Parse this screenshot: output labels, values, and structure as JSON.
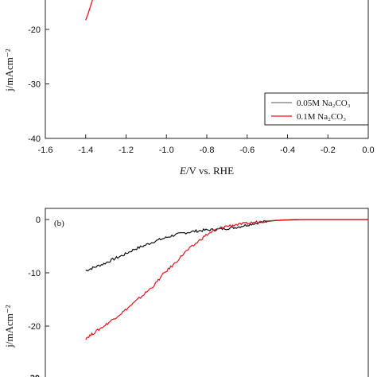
{
  "chart_data": [
    {
      "panel": "top",
      "type": "line",
      "title": "",
      "xlabel_italic": "E",
      "xlabel_rest": "/V vs. RHE",
      "ylabel": "j/mAcm⁻²",
      "xlim": [
        -1.6,
        0.0
      ],
      "ylim": [
        -40,
        -13
      ],
      "xticks": [
        "-1.6",
        "-1.4",
        "-1.2",
        "-1.0",
        "-0.8",
        "-0.6",
        "-0.4",
        "-0.2",
        "0.0"
      ],
      "yticks": [
        "-20",
        "-30",
        "-40"
      ],
      "ytick_values": [
        -20,
        -30,
        -40
      ],
      "legend_position": "lower-right",
      "series": [
        {
          "name": "0.05M Na₂CO₃",
          "color": "#555555",
          "x": [],
          "y": []
        },
        {
          "name": "0.1M Na₂CO₃",
          "color": "#e8141e",
          "x": [
            -1.4,
            -1.39,
            -1.38,
            -1.37,
            -1.36
          ],
          "y": [
            -18.3,
            -17.3,
            -16.2,
            -15.0,
            -13.8
          ]
        }
      ]
    },
    {
      "panel": "bottom",
      "type": "line",
      "panel_label": "(b)",
      "ylabel": "j/mAcm⁻²",
      "ylim": [
        -28,
        1
      ],
      "yticks": [
        "0",
        "-10",
        "-20"
      ],
      "ytick_values": [
        0,
        -10,
        -20
      ],
      "series": [
        {
          "name": "0.05M Na₂CO₃",
          "color": "#111111",
          "x": [
            -1.4,
            -1.36,
            -1.31,
            -1.26,
            -1.21,
            -1.16,
            -1.11,
            -1.06,
            -1.01,
            -0.96,
            -0.91,
            -0.86,
            -0.81,
            -0.76,
            -0.71,
            -0.66,
            -0.61,
            -0.56,
            -0.51,
            -0.46,
            -0.41,
            -0.36,
            -0.31,
            -0.26,
            -0.2,
            0.0
          ],
          "y": [
            -9.6,
            -9.0,
            -8.3,
            -7.4,
            -6.6,
            -5.6,
            -4.9,
            -4.1,
            -3.5,
            -2.9,
            -2.5,
            -2.2,
            -2.0,
            -1.9,
            -1.7,
            -1.5,
            -1.1,
            -0.7,
            -0.4,
            -0.2,
            -0.1,
            -0.05,
            0.0,
            0.0,
            0.0,
            0.0
          ]
        },
        {
          "name": "0.1M Na₂CO₃",
          "color": "#e8141e",
          "x": [
            -1.4,
            -1.36,
            -1.31,
            -1.26,
            -1.21,
            -1.16,
            -1.11,
            -1.06,
            -1.01,
            -0.96,
            -0.91,
            -0.86,
            -0.81,
            -0.76,
            -0.71,
            -0.66,
            -0.61,
            -0.56,
            -0.51,
            -0.46,
            -0.41,
            -0.36,
            -0.31,
            -0.26,
            -0.2,
            0.0
          ],
          "y": [
            -22.3,
            -21.3,
            -20.0,
            -18.6,
            -17.2,
            -15.6,
            -14.0,
            -12.3,
            -10.0,
            -8.3,
            -6.2,
            -4.7,
            -3.1,
            -2.0,
            -1.3,
            -1.0,
            -0.8,
            -0.5,
            -0.3,
            -0.15,
            -0.05,
            0.0,
            0.0,
            0.0,
            0.0,
            0.0
          ]
        }
      ]
    }
  ]
}
